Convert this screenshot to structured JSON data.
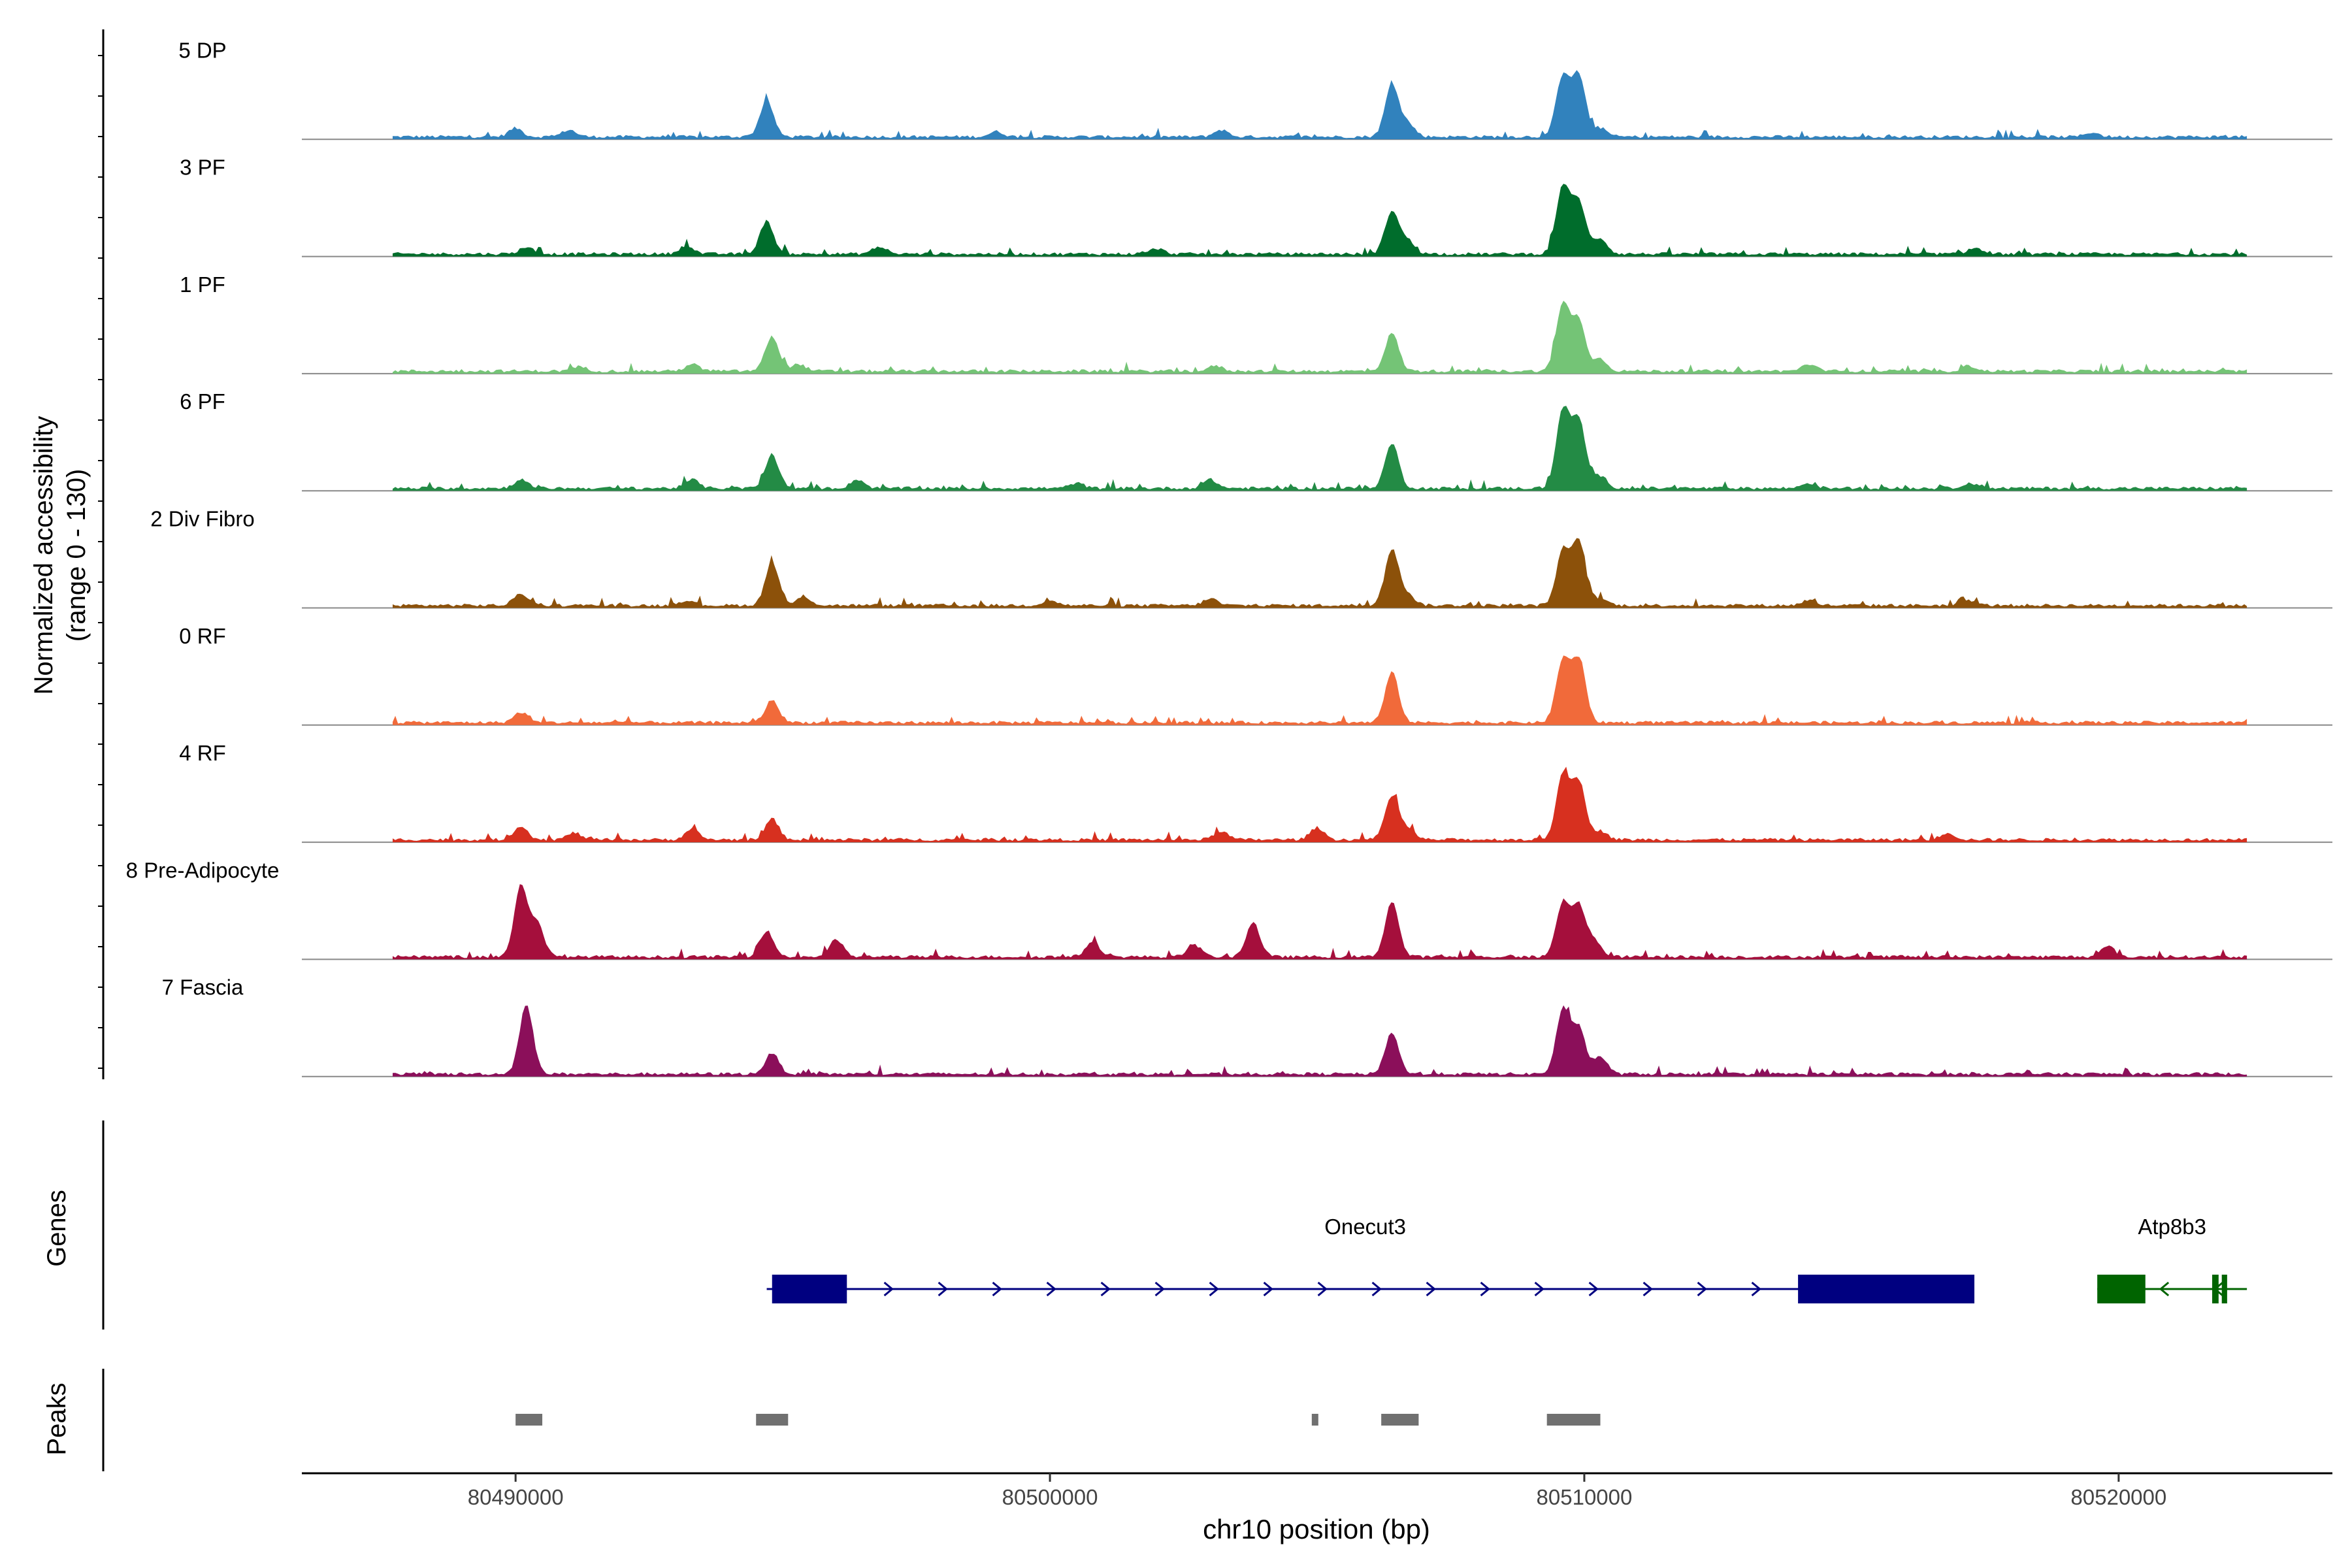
{
  "chart_data": {
    "type": "area",
    "title": "",
    "xlabel": "chr10 position (bp)",
    "ylabel_line1": "Normalized accessibility",
    "ylabel_line2": "(range 0 - 130)",
    "x_range": [
      80486000,
      80524000
    ],
    "y_range": [
      0,
      130
    ],
    "x_ticks": [
      {
        "value": 80490000,
        "label": "80490000"
      },
      {
        "value": 80500000,
        "label": "80500000"
      },
      {
        "value": 80510000,
        "label": "80510000"
      },
      {
        "value": 80520000,
        "label": "80520000"
      }
    ],
    "data_extent": [
      80487700,
      80522400
    ],
    "series": [
      {
        "name": "5 DP",
        "color": "#3182bd",
        "peaks": [
          [
            80490000,
            10
          ],
          [
            80491000,
            8
          ],
          [
            80494700,
            42
          ],
          [
            80499000,
            6
          ],
          [
            80503200,
            8
          ],
          [
            80506400,
            60
          ],
          [
            80506700,
            15
          ],
          [
            80509600,
            70
          ],
          [
            80509900,
            70
          ],
          [
            80510300,
            10
          ],
          [
            80519500,
            5
          ]
        ]
      },
      {
        "name": "3 PF",
        "color": "#006d2c",
        "peaks": [
          [
            80490200,
            8
          ],
          [
            80493200,
            10
          ],
          [
            80494700,
            38
          ],
          [
            80496800,
            8
          ],
          [
            80502000,
            6
          ],
          [
            80506400,
            50
          ],
          [
            80506700,
            15
          ],
          [
            80509600,
            78
          ],
          [
            80509900,
            60
          ],
          [
            80510300,
            18
          ],
          [
            80517300,
            7
          ]
        ]
      },
      {
        "name": "1 PF",
        "color": "#74c476",
        "peaks": [
          [
            80491200,
            5
          ],
          [
            80493300,
            8
          ],
          [
            80494800,
            40
          ],
          [
            80495300,
            8
          ],
          [
            80503100,
            6
          ],
          [
            80506400,
            44
          ],
          [
            80509600,
            76
          ],
          [
            80509900,
            58
          ],
          [
            80510300,
            14
          ],
          [
            80514200,
            8
          ],
          [
            80517200,
            6
          ]
        ]
      },
      {
        "name": "6 PF",
        "color": "#238b45",
        "peaks": [
          [
            80490100,
            10
          ],
          [
            80493300,
            10
          ],
          [
            80494800,
            38
          ],
          [
            80496400,
            10
          ],
          [
            80500500,
            6
          ],
          [
            80503000,
            10
          ],
          [
            80506400,
            52
          ],
          [
            80509600,
            90
          ],
          [
            80509900,
            78
          ],
          [
            80510300,
            14
          ],
          [
            80514200,
            6
          ],
          [
            80517200,
            6
          ]
        ]
      },
      {
        "name": "2 Div Fibro",
        "color": "#8c510a",
        "peaks": [
          [
            80490100,
            14
          ],
          [
            80493200,
            6
          ],
          [
            80494800,
            50
          ],
          [
            80495400,
            10
          ],
          [
            80500000,
            6
          ],
          [
            80503000,
            8
          ],
          [
            80506400,
            65
          ],
          [
            80506700,
            12
          ],
          [
            80509600,
            62
          ],
          [
            80509900,
            72
          ],
          [
            80510300,
            8
          ],
          [
            80514200,
            6
          ],
          [
            80517200,
            6
          ]
        ]
      },
      {
        "name": "0 RF",
        "color": "#f16a3a",
        "peaks": [
          [
            80490100,
            12
          ],
          [
            80494800,
            26
          ],
          [
            80506400,
            58
          ],
          [
            80509600,
            72
          ],
          [
            80509900,
            72
          ]
        ]
      },
      {
        "name": "4 RF",
        "color": "#d7301f",
        "peaks": [
          [
            80490100,
            16
          ],
          [
            80491100,
            8
          ],
          [
            80493300,
            12
          ],
          [
            80494800,
            24
          ],
          [
            80503200,
            10
          ],
          [
            80505000,
            14
          ],
          [
            80506400,
            50
          ],
          [
            80506700,
            12
          ],
          [
            80509600,
            74
          ],
          [
            80509900,
            66
          ],
          [
            80510300,
            10
          ],
          [
            80516800,
            8
          ]
        ]
      },
      {
        "name": "8 Pre-Adipocyte",
        "color": "#a50f3c",
        "peaks": [
          [
            80490100,
            80
          ],
          [
            80490400,
            38
          ],
          [
            80494700,
            30
          ],
          [
            80496000,
            20
          ],
          [
            80500800,
            18
          ],
          [
            80502700,
            14
          ],
          [
            80503800,
            40
          ],
          [
            80506400,
            64
          ],
          [
            80509600,
            62
          ],
          [
            80509900,
            58
          ],
          [
            80510200,
            18
          ],
          [
            80519800,
            12
          ]
        ]
      },
      {
        "name": "7 Fascia",
        "color": "#8b0f5a",
        "peaks": [
          [
            80490200,
            80
          ],
          [
            80494800,
            24
          ],
          [
            80506400,
            48
          ],
          [
            80509600,
            74
          ],
          [
            80509900,
            52
          ],
          [
            80510300,
            20
          ]
        ]
      }
    ],
    "genes_track": {
      "label": "Genes",
      "genes": [
        {
          "name": "Onecut3",
          "strand": "+",
          "color": "#000080",
          "start": 80494700,
          "end": 80517300,
          "exons": [
            [
              80494800,
              80496200
            ],
            [
              80514000,
              80517300
            ]
          ]
        },
        {
          "name": "Atp8b3",
          "strand": "-",
          "color": "#006400",
          "start": 80519600,
          "end": 80522400,
          "exons": [
            [
              80519600,
              80520500
            ],
            [
              80521750,
              80521870
            ],
            [
              80521930,
              80522030
            ]
          ]
        }
      ]
    },
    "peaks_track": {
      "label": "Peaks",
      "color": "#707070",
      "regions": [
        [
          80490000,
          80490500
        ],
        [
          80494500,
          80495100
        ],
        [
          80504900,
          80505000
        ],
        [
          80506200,
          80506900
        ],
        [
          80509300,
          80510300
        ]
      ]
    }
  }
}
